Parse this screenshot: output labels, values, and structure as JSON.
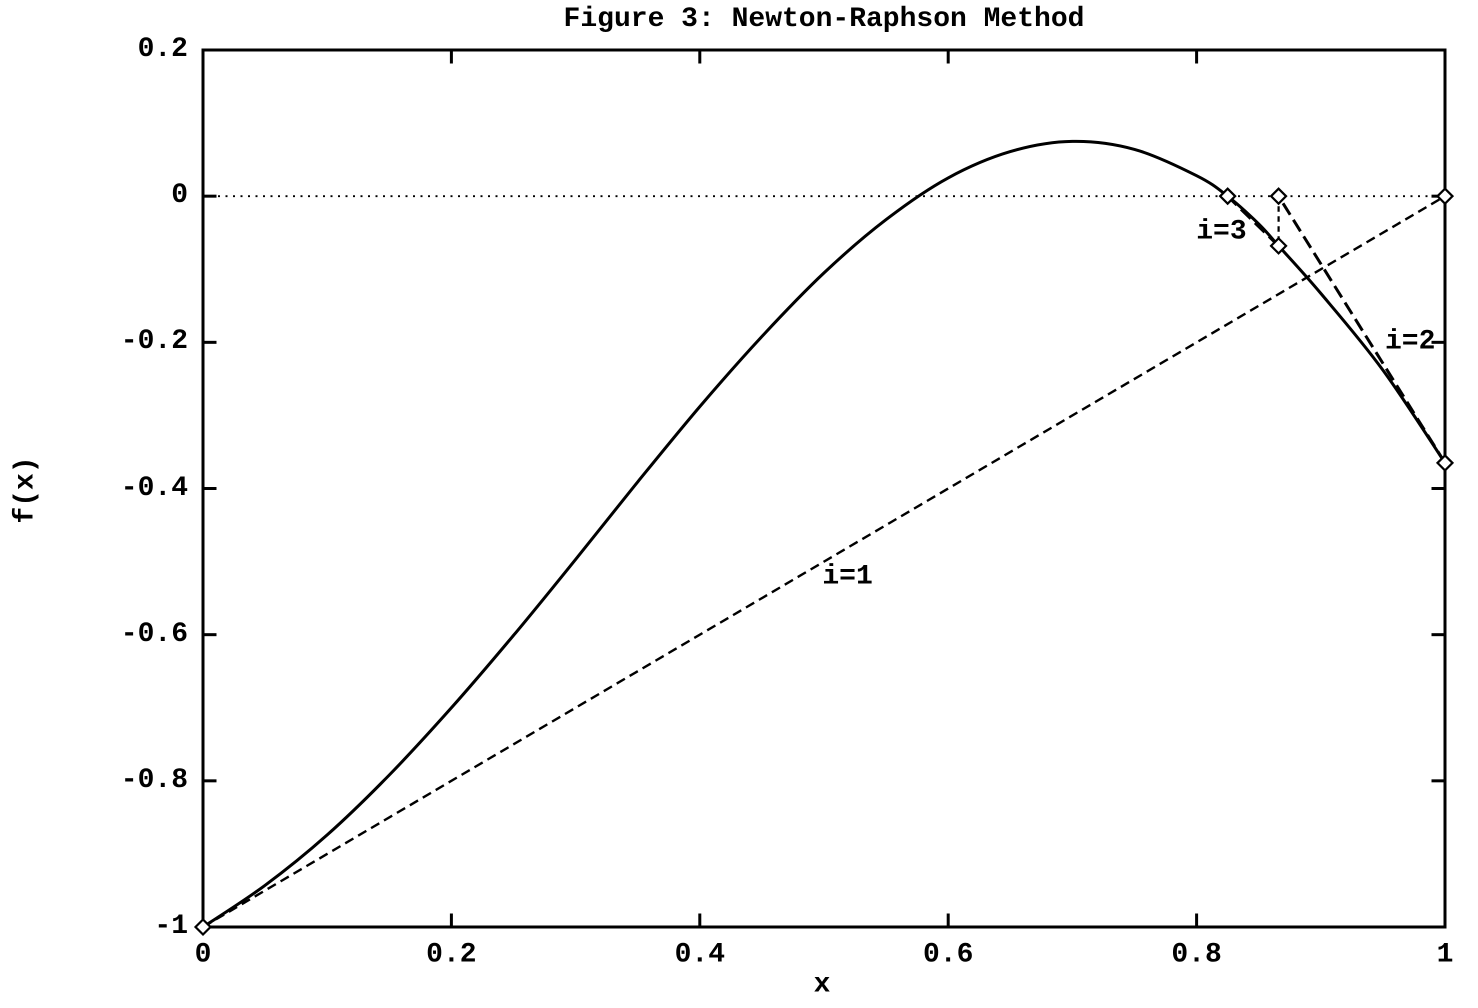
{
  "title": "Figure 3: Newton-Raphson Method",
  "colors": {
    "foreground": "#000000",
    "background": "#ffffff"
  },
  "chart_data": {
    "type": "line",
    "title": "Figure 3: Newton-Raphson Method",
    "xlabel": "x",
    "ylabel": "f(x)",
    "xlim": [
      0,
      1
    ],
    "ylim": [
      -1,
      0.2
    ],
    "grid": false,
    "legend_position": "none",
    "x_ticks": {
      "values": [
        0,
        0.2,
        0.4,
        0.6,
        0.8,
        1
      ],
      "labels": [
        "0",
        "0.2",
        "0.4",
        "0.6",
        "0.8",
        "1"
      ]
    },
    "y_ticks": {
      "values": [
        0.2,
        0,
        -0.2,
        -0.4,
        -0.6,
        -0.8,
        -1
      ],
      "labels": [
        "0.2",
        "0",
        "-0.2",
        "-0.4",
        "-0.6",
        "-0.8",
        "-1"
      ]
    },
    "series": [
      {
        "name": "function-curve",
        "style": "solid",
        "width": 3,
        "smooth": true,
        "points": [
          [
            0,
            -1
          ],
          [
            0.05,
            -0.943
          ],
          [
            0.1,
            -0.874
          ],
          [
            0.15,
            -0.792
          ],
          [
            0.2,
            -0.7
          ],
          [
            0.25,
            -0.601
          ],
          [
            0.3,
            -0.497
          ],
          [
            0.35,
            -0.391
          ],
          [
            0.4,
            -0.288
          ],
          [
            0.45,
            -0.192
          ],
          [
            0.5,
            -0.105
          ],
          [
            0.55,
            -0.032
          ],
          [
            0.6,
            0.025
          ],
          [
            0.65,
            0.061
          ],
          [
            0.7,
            0.075
          ],
          [
            0.75,
            0.064
          ],
          [
            0.8,
            0.028
          ],
          [
            0.825,
            0
          ],
          [
            0.85,
            -0.038
          ],
          [
            0.866,
            -0.068
          ],
          [
            0.9,
            -0.133
          ],
          [
            0.95,
            -0.238
          ],
          [
            1,
            -0.365
          ]
        ]
      },
      {
        "name": "zero-axis-line",
        "style": "dotted",
        "width": 1.8,
        "smooth": false,
        "points": [
          [
            0,
            0
          ],
          [
            1,
            0
          ]
        ]
      },
      {
        "name": "tangent-i1",
        "style": "dashed",
        "width": 2.4,
        "smooth": false,
        "points": [
          [
            0,
            -1
          ],
          [
            1,
            0
          ]
        ]
      },
      {
        "name": "tangent-i2",
        "style": "dashed-bold",
        "width": 3,
        "smooth": false,
        "points": [
          [
            1,
            -0.365
          ],
          [
            0.866,
            0
          ]
        ]
      },
      {
        "name": "drop-line-x2",
        "style": "dashed-fine",
        "width": 2.2,
        "smooth": false,
        "points": [
          [
            0.866,
            0
          ],
          [
            0.866,
            -0.068
          ]
        ]
      },
      {
        "name": "tangent-i3",
        "style": "dashed-bold",
        "width": 3,
        "smooth": false,
        "points": [
          [
            0.866,
            -0.068
          ],
          [
            0.825,
            0
          ]
        ]
      }
    ],
    "markers": {
      "shape": "open-diamond",
      "size": 7.5,
      "points": [
        [
          0,
          -1
        ],
        [
          0.825,
          0
        ],
        [
          0.866,
          0
        ],
        [
          0.866,
          -0.068
        ],
        [
          1,
          0
        ],
        [
          1,
          -0.365
        ]
      ]
    },
    "annotations": [
      {
        "text": "i=1",
        "x": 0.519,
        "y": -0.521
      },
      {
        "text": "i=2",
        "x": 0.972,
        "y": -0.199
      },
      {
        "text": "i=3",
        "x": 0.82,
        "y": -0.049
      }
    ]
  }
}
